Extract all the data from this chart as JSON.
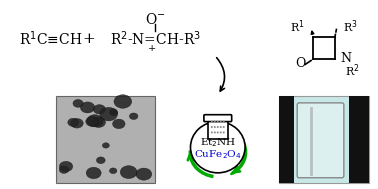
{
  "bg_color": "#ffffff",
  "title": "",
  "alkyne_text": "R$^{1}$C≡CH",
  "plus_text": "+",
  "nitrone_line1": "O$^{-}$",
  "nitrone_line2": "R$^{2}$-N=CH-R$^{3}$",
  "nitrone_line3": "+",
  "arrow_curve": true,
  "flask_text1": "Et$_{2}$NH",
  "flask_text2": "CuFe$_{2}$O$_{4}$",
  "product_label_r1": "R$^{1}$",
  "product_label_r2": "R$^{2}$",
  "product_label_r3": "R$^{3}$",
  "product_label_o": "O",
  "product_label_n": "N",
  "green_color": "#00aa00",
  "blue_color": "#0000cc",
  "black_color": "#000000",
  "gray_color": "#888888"
}
